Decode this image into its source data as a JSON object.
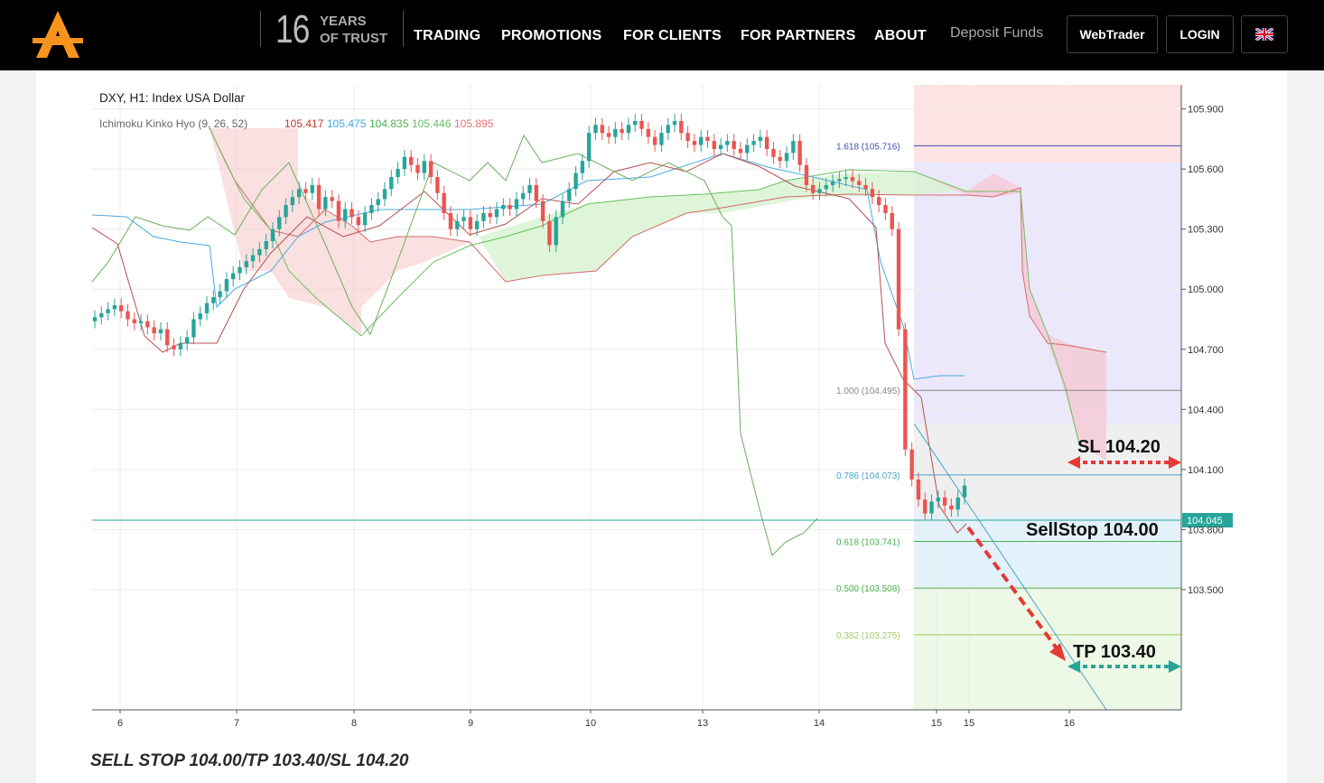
{
  "header": {
    "years_number": "16",
    "years_line1": "YEARS",
    "years_line2": "OF TRUST",
    "nav": [
      "TRADING",
      "PROMOTIONS",
      "FOR CLIENTS",
      "FOR PARTNERS",
      "ABOUT"
    ],
    "deposit": "Deposit Funds",
    "webtrader": "WebTrader",
    "login": "LOGIN",
    "logo_color": "#f7941d"
  },
  "caption": "SELL STOP 104.00/TP 103.40/SL 104.20",
  "chart_data": {
    "type": "line",
    "title": "DXY, H1: Index USA Dollar",
    "indicator_label": "Ichimoku Kinko Hyo (9, 26, 52)",
    "indicator_values": [
      "105.417",
      "105.475",
      "104.835",
      "105.446",
      "105.895"
    ],
    "indicator_colors": [
      "#c0392b",
      "#3fa9e0",
      "#4caf50",
      "#66bb6a",
      "#e57373"
    ],
    "x_tick_labels": [
      "6",
      "7",
      "8",
      "9",
      "10",
      "13",
      "14",
      "15",
      "15",
      "16"
    ],
    "y_tick_labels": [
      "105.900",
      "105.600",
      "105.300",
      "105.000",
      "104.700",
      "104.400",
      "104.100",
      "103.800",
      "103.500"
    ],
    "ylim": [
      102.9,
      106.02
    ],
    "current_price": "104.045",
    "fib_levels": [
      {
        "label": "1.618 (105.716)",
        "value": 105.716,
        "color": "#3f51b5"
      },
      {
        "label": "1.000 (104.495)",
        "value": 104.495,
        "color": "#888888"
      },
      {
        "label": "0.786 (104.073)",
        "value": 104.073,
        "color": "#4aa3c8"
      },
      {
        "label": "0.618 (103.741)",
        "value": 103.741,
        "color": "#4caf50"
      },
      {
        "label": "0.500 (103.508)",
        "value": 103.508,
        "color": "#4caf50"
      },
      {
        "label": "0.382 (103.275)",
        "value": 103.275,
        "color": "#9ccc65"
      }
    ],
    "annotations": {
      "sl": {
        "label": "SL 104.20",
        "value": 104.2
      },
      "entry": {
        "label": "SellStop 104.00",
        "value": 104.0
      },
      "tp": {
        "label": "TP 103.40",
        "value": 103.4
      }
    },
    "close_series": [
      104.86,
      104.88,
      104.9,
      104.92,
      104.89,
      104.85,
      104.83,
      104.84,
      104.81,
      104.78,
      104.8,
      104.72,
      104.7,
      104.73,
      104.76,
      104.85,
      104.88,
      104.93,
      104.96,
      104.99,
      105.05,
      105.08,
      105.11,
      105.14,
      105.17,
      105.2,
      105.24,
      105.3,
      105.36,
      105.42,
      105.46,
      105.5,
      105.48,
      105.52,
      105.4,
      105.46,
      105.44,
      105.34,
      105.4,
      105.36,
      105.32,
      105.38,
      105.42,
      105.45,
      105.5,
      105.56,
      105.6,
      105.66,
      105.62,
      105.58,
      105.64,
      105.56,
      105.48,
      105.38,
      105.3,
      105.34,
      105.36,
      105.3,
      105.34,
      105.38,
      105.36,
      105.4,
      105.42,
      105.4,
      105.45,
      105.48,
      105.52,
      105.44,
      105.34,
      105.22,
      105.36,
      105.44,
      105.5,
      105.58,
      105.64,
      105.78,
      105.82,
      105.78,
      105.76,
      105.8,
      105.78,
      105.82,
      105.84,
      105.8,
      105.76,
      105.72,
      105.78,
      105.82,
      105.84,
      105.78,
      105.74,
      105.72,
      105.76,
      105.74,
      105.7,
      105.72,
      105.74,
      105.7,
      105.68,
      105.72,
      105.74,
      105.76,
      105.7,
      105.66,
      105.64,
      105.68,
      105.74,
      105.62,
      105.52,
      105.48,
      105.5,
      105.52,
      105.54,
      105.55,
      105.56,
      105.54,
      105.52,
      105.5,
      105.46,
      105.42,
      105.38,
      105.3,
      104.8,
      104.2,
      104.05,
      103.95,
      103.88,
      103.94,
      103.96,
      103.92,
      103.9,
      103.96,
      104.02
    ]
  }
}
